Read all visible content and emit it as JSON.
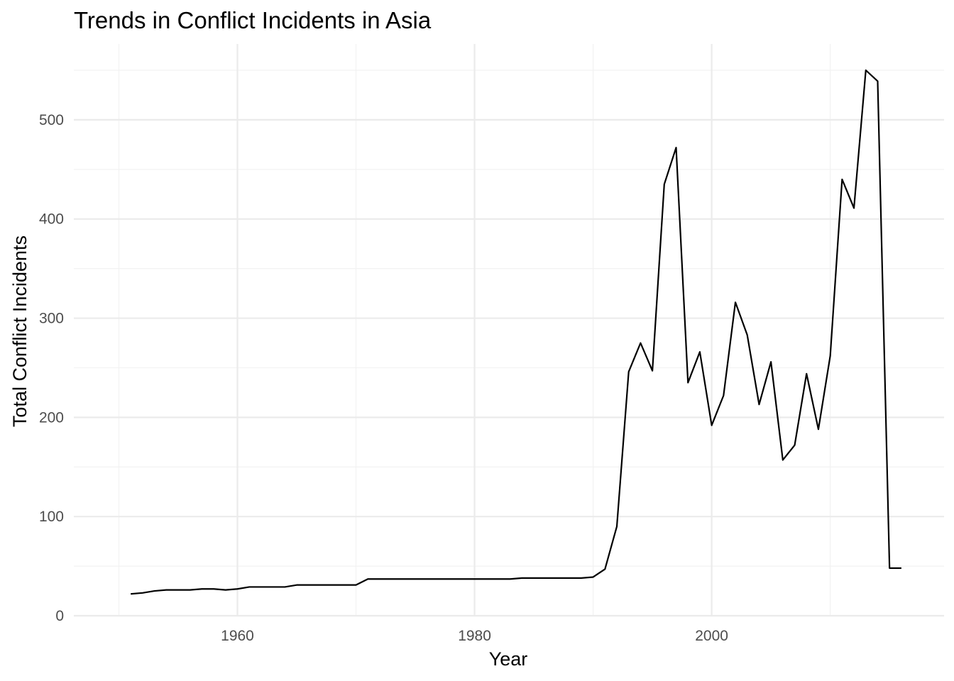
{
  "chart_data": {
    "type": "line",
    "title": "Trends in Conflict Incidents in Asia",
    "xlabel": "Year",
    "ylabel": "Total Conflict Incidents",
    "xlim": [
      1946.2,
      2019.6
    ],
    "ylim": [
      0,
      550
    ],
    "x_ticks": [
      1960,
      1980,
      2000
    ],
    "x_tick_labels": [
      "1960",
      "1980",
      "2000"
    ],
    "x_minor_ticks": [
      1950,
      1970,
      1990,
      2010
    ],
    "y_ticks": [
      0,
      100,
      200,
      300,
      400,
      500
    ],
    "y_tick_labels": [
      "0",
      "100",
      "200",
      "300",
      "400",
      "500"
    ],
    "y_minor_ticks": [
      50,
      150,
      250,
      350,
      450,
      550
    ],
    "grid": true,
    "line_color": "#000000",
    "series": [
      {
        "x": [
          1951,
          1952,
          1953,
          1954,
          1955,
          1956,
          1957,
          1958,
          1959,
          1960,
          1961,
          1962,
          1963,
          1964,
          1965,
          1966,
          1967,
          1968,
          1969,
          1970,
          1971,
          1972,
          1973,
          1974,
          1975,
          1976,
          1977,
          1978,
          1979,
          1980,
          1981,
          1982,
          1983,
          1984,
          1985,
          1986,
          1987,
          1988,
          1989,
          1990,
          1991,
          1992,
          1993,
          1994,
          1995,
          1996,
          1997,
          1998,
          1999,
          2000,
          2001,
          2002,
          2003,
          2004,
          2005,
          2006,
          2007,
          2008,
          2009,
          2010,
          2011,
          2012,
          2013,
          2014,
          2015,
          2016
        ],
        "values": [
          22,
          23,
          25,
          26,
          26,
          26,
          27,
          27,
          26,
          27,
          29,
          29,
          29,
          29,
          31,
          31,
          31,
          31,
          31,
          31,
          37,
          37,
          37,
          37,
          37,
          37,
          37,
          37,
          37,
          37,
          37,
          37,
          37,
          38,
          38,
          38,
          38,
          38,
          38,
          39,
          47,
          90,
          246,
          275,
          247,
          435,
          472,
          235,
          266,
          192,
          222,
          316,
          283,
          213,
          256,
          157,
          172,
          244,
          188,
          262,
          440,
          411,
          550,
          539,
          48,
          48
        ]
      }
    ]
  }
}
